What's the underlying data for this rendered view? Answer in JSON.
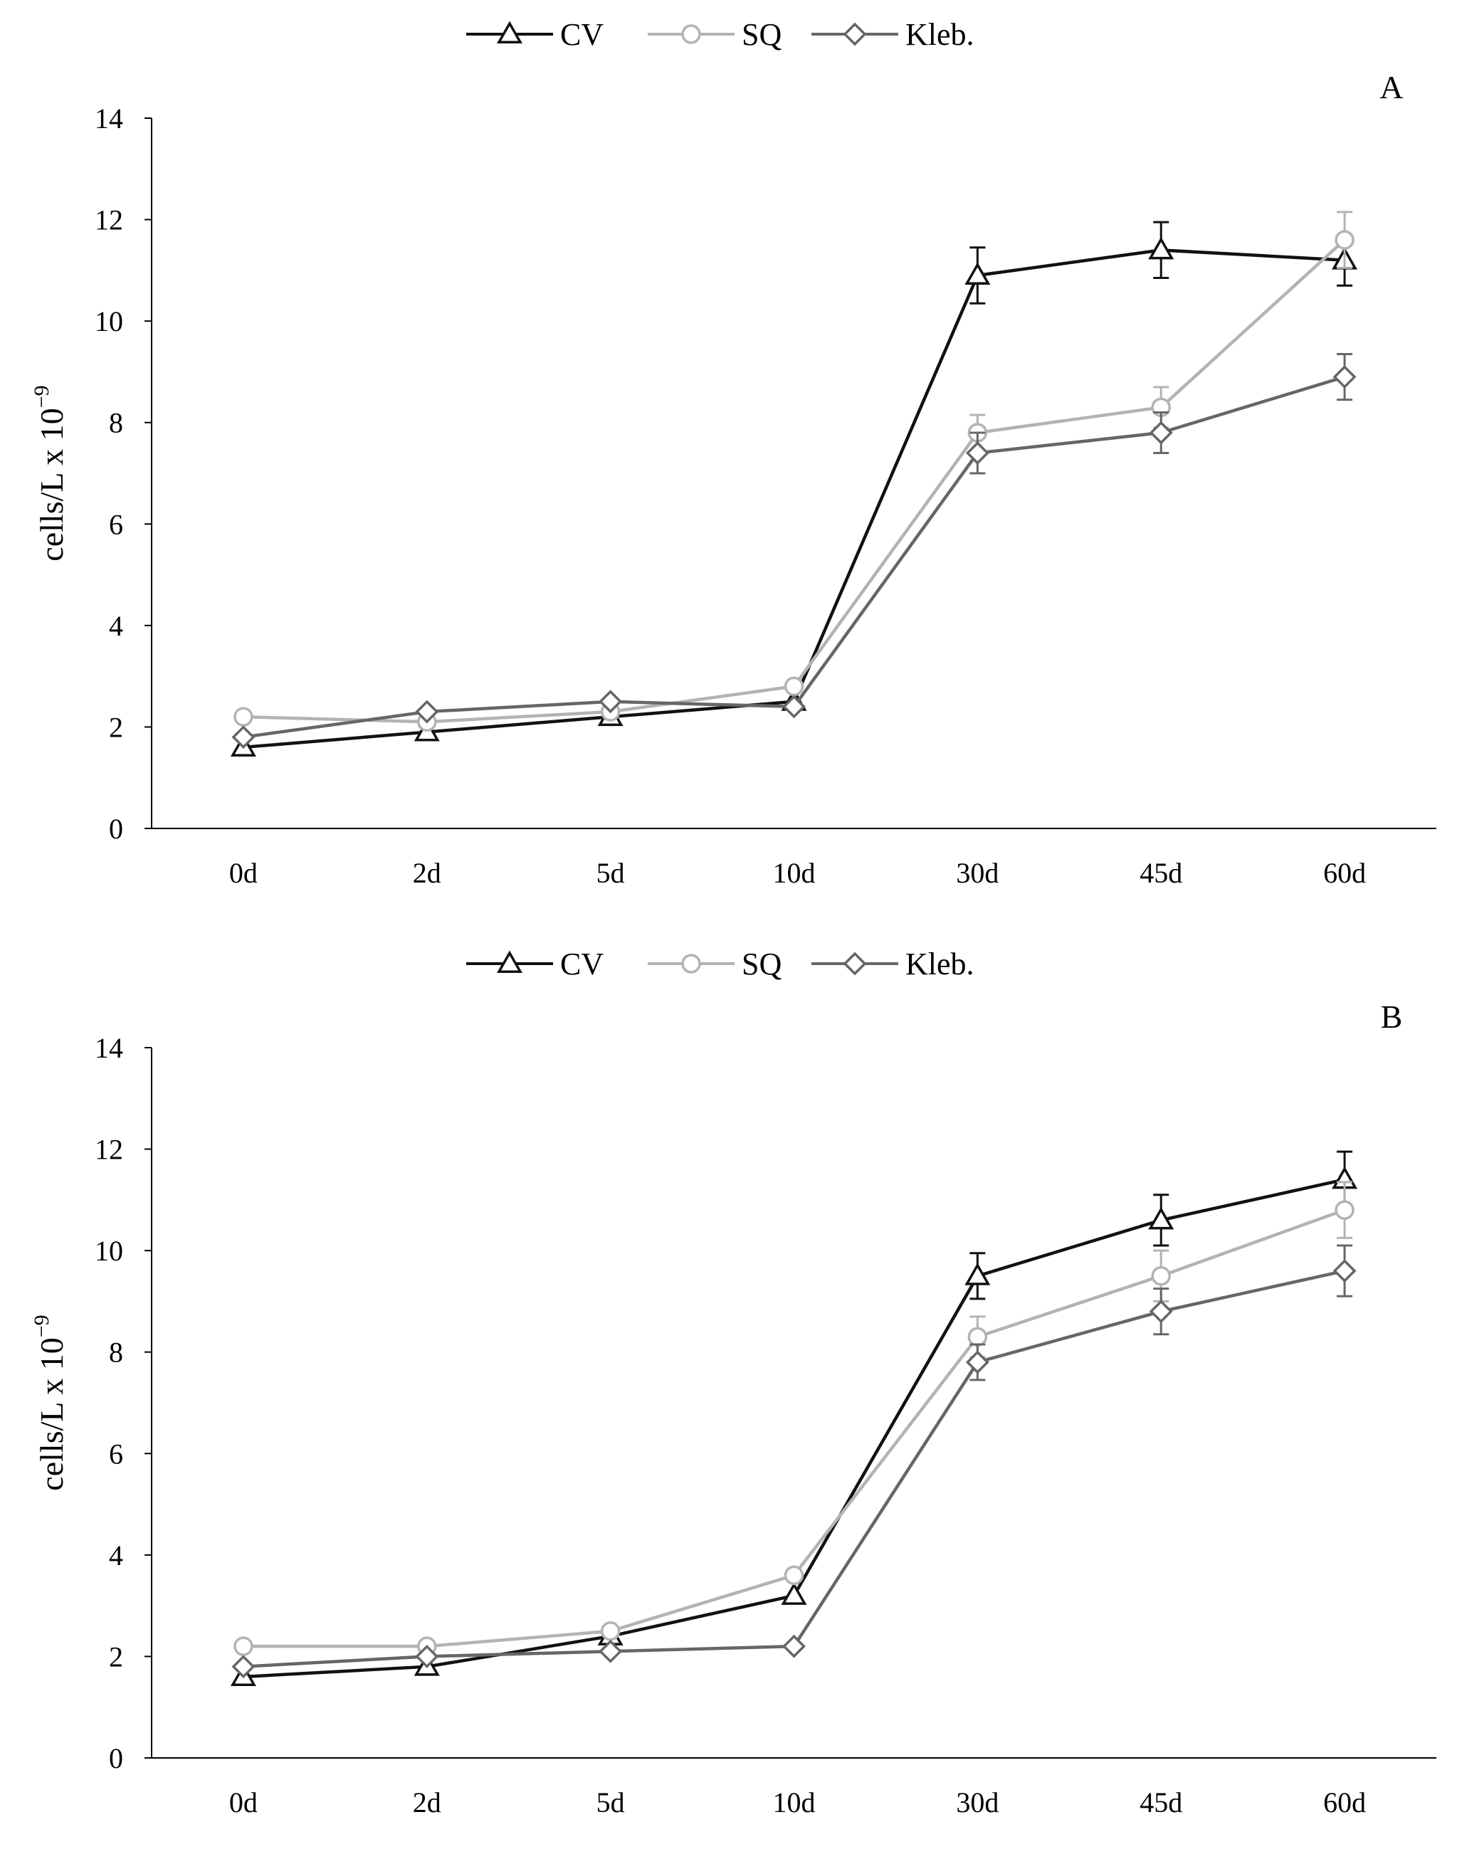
{
  "chart_data": [
    {
      "type": "line",
      "panel_label": "A",
      "categories": [
        "0d",
        "2d",
        "5d",
        "10d",
        "30d",
        "45d",
        "60d"
      ],
      "ylabel": "cells/L x 10",
      "ylabel_exponent": "−9",
      "ylim": [
        0,
        14
      ],
      "yticks": [
        "0",
        "2",
        "4",
        "6",
        "8",
        "10",
        "12",
        "14"
      ],
      "legend_position": "top-center",
      "series": [
        {
          "name": "CV",
          "color": "#111111",
          "marker": "triangle",
          "values": [
            1.6,
            1.9,
            2.2,
            2.5,
            10.9,
            11.4,
            11.2
          ],
          "errors": [
            0,
            0,
            0,
            0,
            0.55,
            0.55,
            0.5
          ]
        },
        {
          "name": "SQ",
          "color": "#b3b3b3",
          "marker": "circle",
          "values": [
            2.2,
            2.1,
            2.3,
            2.8,
            7.8,
            8.3,
            11.6
          ],
          "errors": [
            0,
            0,
            0,
            0,
            0.35,
            0.4,
            0.55
          ]
        },
        {
          "name": "Kleb.",
          "color": "#666666",
          "marker": "diamond",
          "values": [
            1.8,
            2.3,
            2.5,
            2.4,
            7.4,
            7.8,
            8.9
          ],
          "errors": [
            0,
            0,
            0,
            0,
            0.4,
            0.4,
            0.45
          ]
        }
      ]
    },
    {
      "type": "line",
      "panel_label": "B",
      "categories": [
        "0d",
        "2d",
        "5d",
        "10d",
        "30d",
        "45d",
        "60d"
      ],
      "ylabel": "cells/L x 10",
      "ylabel_exponent": "−9",
      "ylim": [
        0,
        14
      ],
      "yticks": [
        "0",
        "2",
        "4",
        "6",
        "8",
        "10",
        "12",
        "14"
      ],
      "legend_position": "top-center",
      "series": [
        {
          "name": "CV",
          "color": "#111111",
          "marker": "triangle",
          "values": [
            1.6,
            1.8,
            2.4,
            3.2,
            9.5,
            10.6,
            11.4
          ],
          "errors": [
            0,
            0,
            0,
            0,
            0.45,
            0.5,
            0.55
          ]
        },
        {
          "name": "SQ",
          "color": "#b3b3b3",
          "marker": "circle",
          "values": [
            2.2,
            2.2,
            2.5,
            3.6,
            8.3,
            9.5,
            10.8
          ],
          "errors": [
            0,
            0,
            0,
            0,
            0.4,
            0.5,
            0.55
          ]
        },
        {
          "name": "Kleb.",
          "color": "#666666",
          "marker": "diamond",
          "values": [
            1.8,
            2.0,
            2.1,
            2.2,
            7.8,
            8.8,
            9.6
          ],
          "errors": [
            0,
            0,
            0,
            0,
            0.35,
            0.45,
            0.5
          ]
        }
      ]
    }
  ]
}
